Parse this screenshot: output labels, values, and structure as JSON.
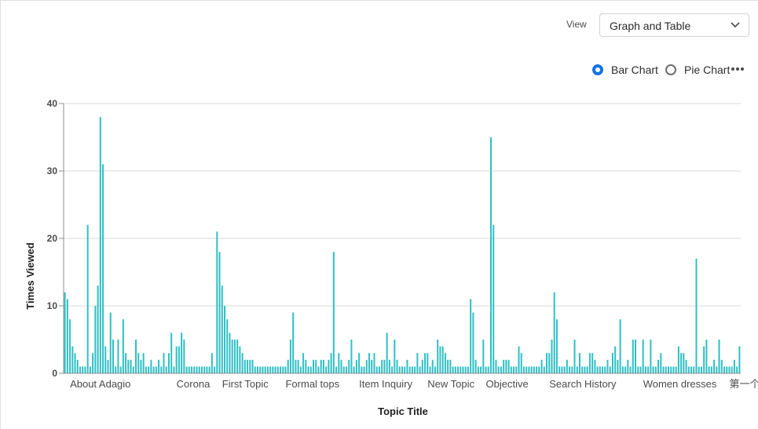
{
  "view": {
    "label": "View",
    "selected": "Graph and Table"
  },
  "chart_toggle": {
    "options": [
      "Bar Chart",
      "Pie Chart"
    ],
    "selected": "Bar Chart"
  },
  "colors": {
    "bar": "#2fbfc4",
    "accent": "#1473e6",
    "grid": "#d9d9d9"
  },
  "chart_data": {
    "type": "bar",
    "xlabel": "Topic Title",
    "ylabel": "Times Viewed",
    "ylim": [
      0,
      40
    ],
    "yticks": [
      0,
      10,
      20,
      30,
      40
    ],
    "grid": true,
    "category_labels": [
      {
        "text": "About Adagio",
        "index": 2
      },
      {
        "text": "Corona",
        "index": 44
      },
      {
        "text": "First Topic",
        "index": 62
      },
      {
        "text": "Formal tops",
        "index": 87
      },
      {
        "text": "Item Inquiry",
        "index": 116
      },
      {
        "text": "New Topic",
        "index": 143
      },
      {
        "text": "Objective",
        "index": 166
      },
      {
        "text": "Search History",
        "index": 191
      },
      {
        "text": "Women dresses",
        "index": 228
      },
      {
        "text": "第一个主题",
        "index": 262
      }
    ],
    "values": [
      12,
      11,
      8,
      4,
      3,
      2,
      1,
      1,
      1,
      22,
      1,
      3,
      10,
      13,
      38,
      31,
      4,
      2,
      9,
      5,
      1,
      5,
      1,
      8,
      3,
      2,
      2,
      1,
      5,
      3,
      2,
      3,
      1,
      1,
      2,
      1,
      1,
      2,
      1,
      3,
      1,
      3,
      6,
      1,
      4,
      4,
      6,
      5,
      1,
      1,
      1,
      1,
      1,
      1,
      1,
      1,
      1,
      1,
      3,
      1,
      21,
      18,
      13,
      10,
      8,
      6,
      5,
      5,
      5,
      4,
      3,
      2,
      2,
      2,
      2,
      1,
      1,
      1,
      1,
      1,
      1,
      1,
      1,
      1,
      1,
      1,
      1,
      1,
      2,
      5,
      9,
      2,
      2,
      1,
      3,
      2,
      1,
      1,
      2,
      2,
      1,
      2,
      2,
      1,
      2,
      3,
      18,
      1,
      3,
      2,
      1,
      1,
      2,
      5,
      1,
      2,
      3,
      1,
      1,
      2,
      3,
      2,
      3,
      1,
      1,
      2,
      2,
      6,
      2,
      1,
      5,
      2,
      1,
      1,
      1,
      2,
      1,
      1,
      1,
      3,
      1,
      2,
      3,
      3,
      1,
      2,
      1,
      5,
      4,
      4,
      3,
      2,
      2,
      1,
      1,
      1,
      1,
      1,
      1,
      1,
      11,
      9,
      2,
      1,
      1,
      5,
      1,
      1,
      35,
      22,
      2,
      1,
      1,
      2,
      2,
      2,
      1,
      1,
      1,
      4,
      3,
      1,
      1,
      1,
      1,
      1,
      1,
      1,
      2,
      1,
      3,
      3,
      5,
      12,
      8,
      1,
      1,
      1,
      2,
      1,
      1,
      5,
      1,
      3,
      1,
      1,
      1,
      3,
      3,
      2,
      1,
      1,
      1,
      1,
      2,
      1,
      3,
      4,
      2,
      8,
      1,
      1,
      2,
      1,
      5,
      5,
      1,
      1,
      5,
      1,
      1,
      5,
      1,
      1,
      2,
      3,
      1,
      1,
      1,
      1,
      1,
      1,
      4,
      3,
      3,
      2,
      1,
      1,
      1,
      17,
      1,
      1,
      4,
      5,
      1,
      1,
      2,
      1,
      5,
      2,
      1,
      1,
      1,
      1,
      2,
      1,
      4
    ]
  }
}
